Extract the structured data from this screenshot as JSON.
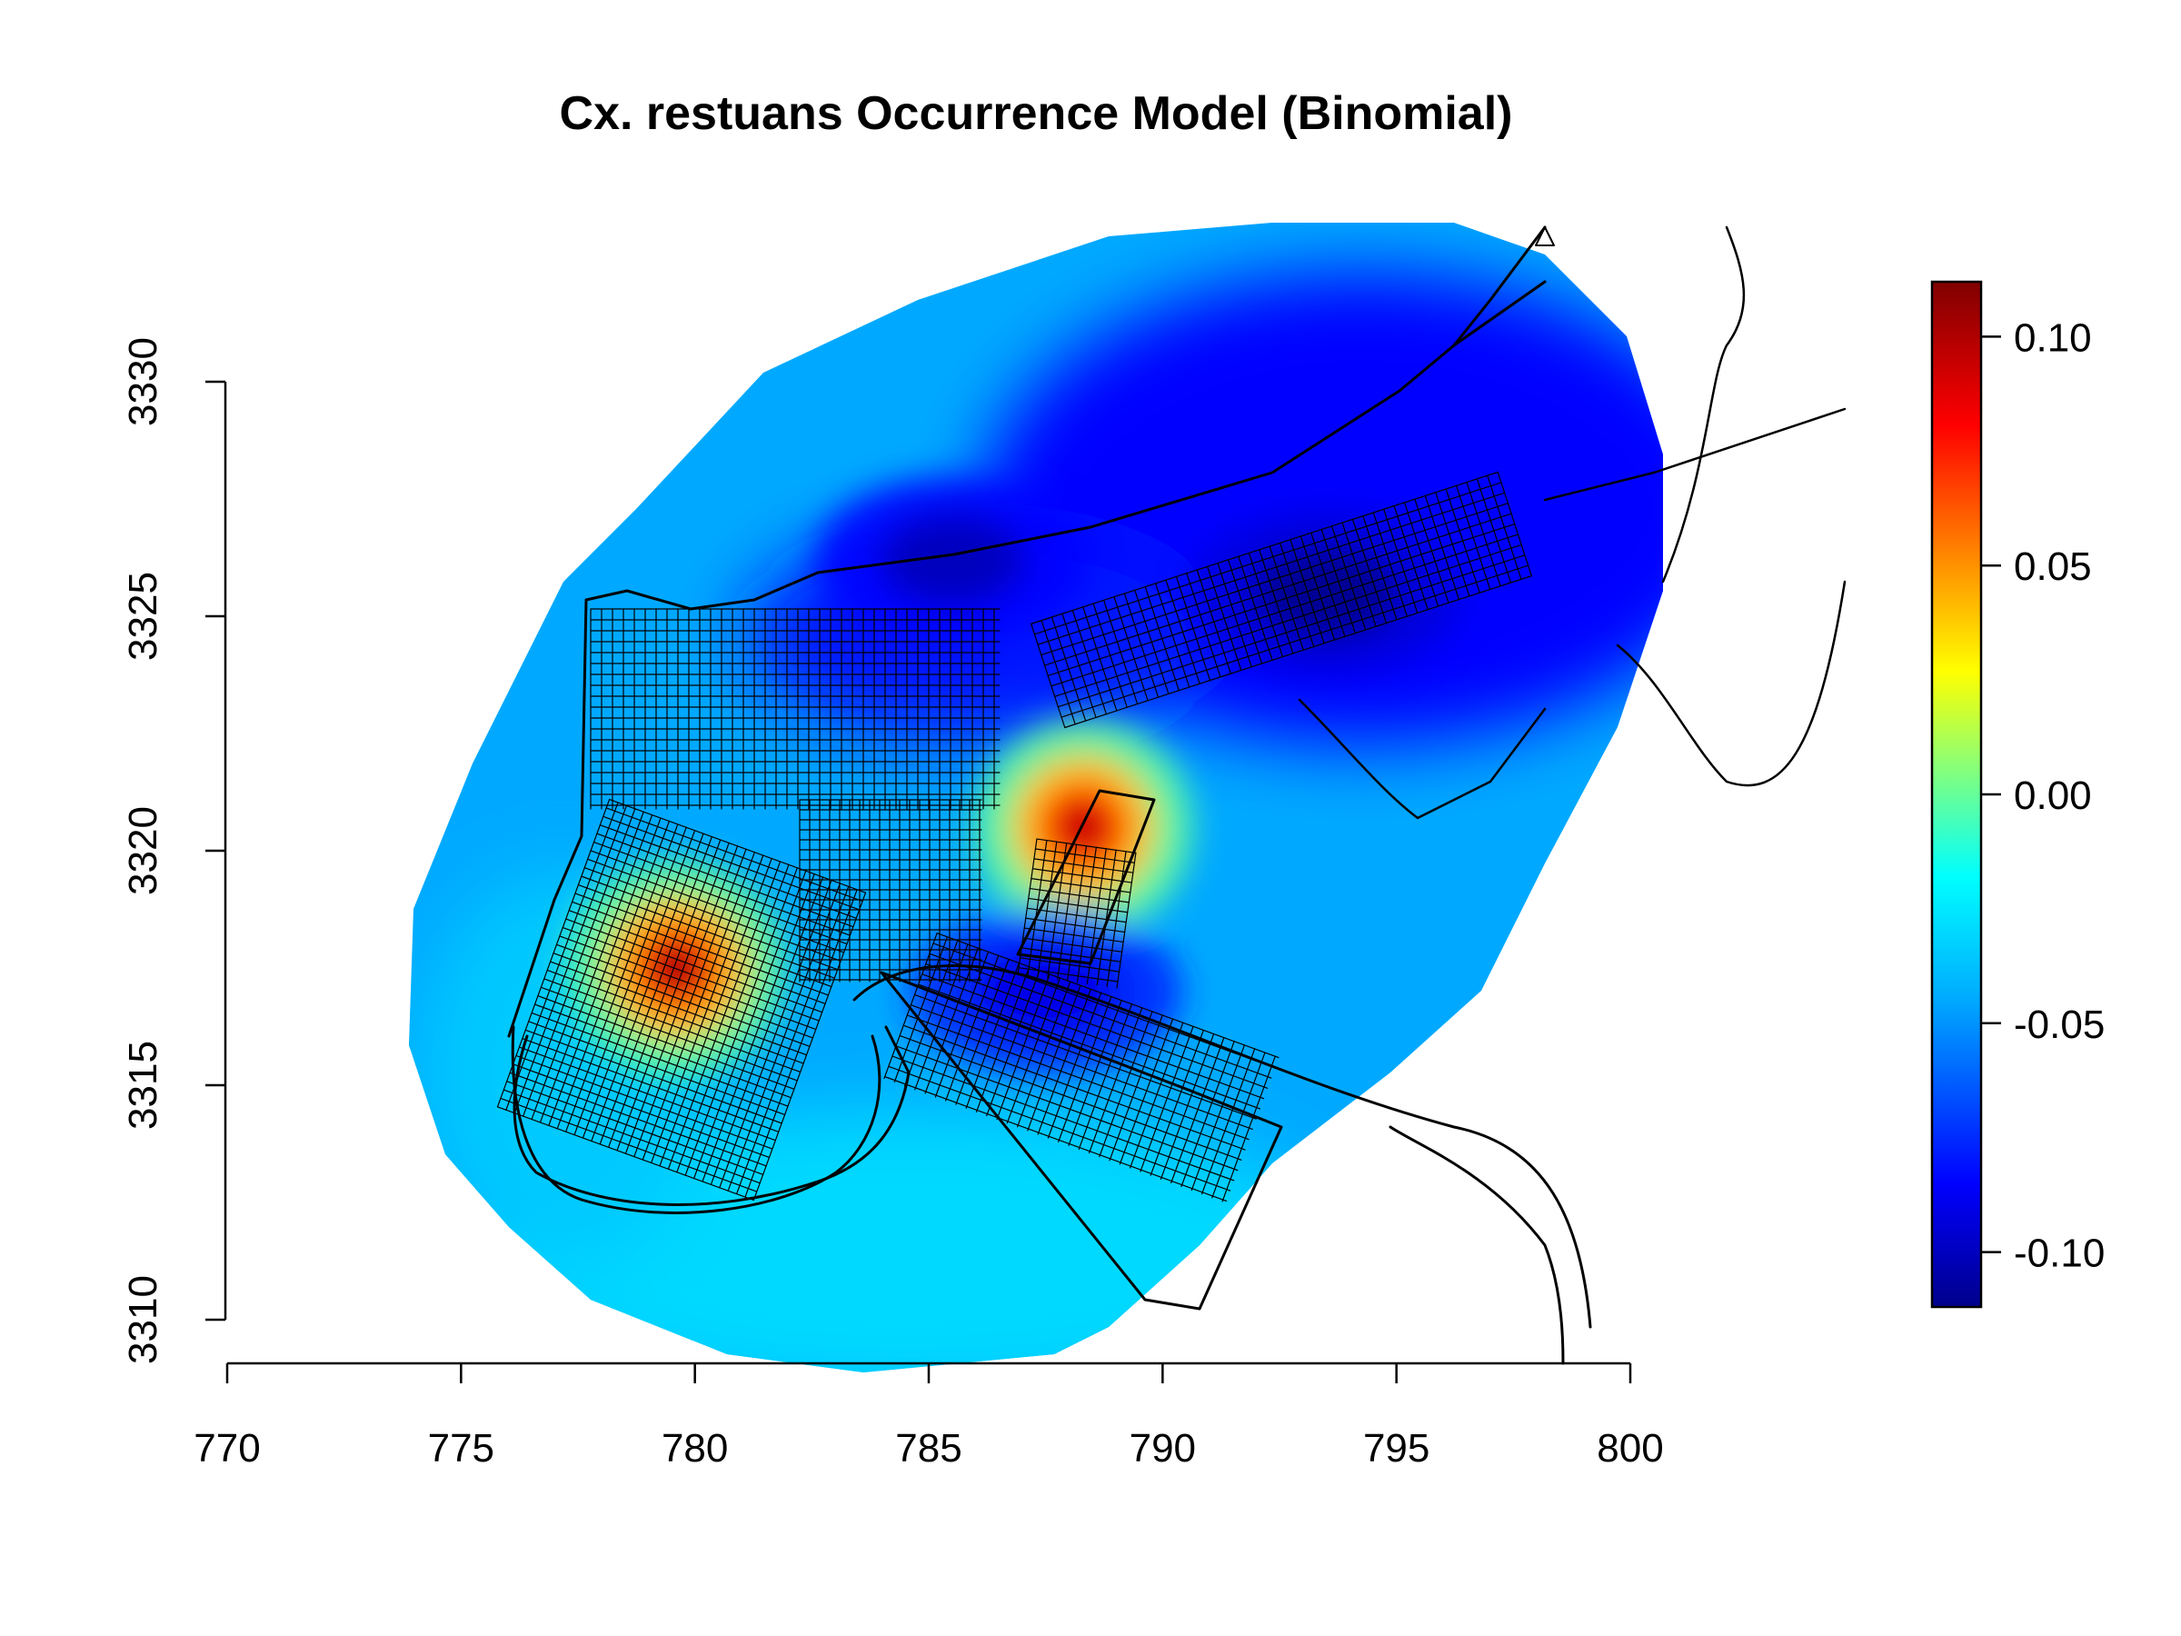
{
  "chart_data": {
    "type": "heatmap",
    "title": "Cx. restuans Occurrence Model (Binomial)",
    "xlabel": "",
    "ylabel": "",
    "xlim": [
      770,
      800
    ],
    "ylim": [
      3310,
      3330
    ],
    "x_ticks": [
      "770",
      "775",
      "780",
      "785",
      "790",
      "795",
      "800"
    ],
    "y_ticks": [
      "3310",
      "3315",
      "3320",
      "3325",
      "3330"
    ],
    "colorbar": {
      "range": [
        -0.112,
        0.112
      ],
      "ticks": [
        "0.10",
        "0.05",
        "0.00",
        "-0.05",
        "-0.10"
      ],
      "palette": [
        "#00008b",
        "#0000ff",
        "#00aaff",
        "#00ffff",
        "#80ff80",
        "#ffff00",
        "#ff8000",
        "#ff0000",
        "#800000"
      ]
    },
    "hotspots": [
      {
        "x": 779.6,
        "y": 3317.5,
        "value": 0.11
      },
      {
        "x": 788.3,
        "y": 3320.5,
        "value": 0.1
      },
      {
        "x": 793.5,
        "y": 3325.5,
        "value": -0.11
      },
      {
        "x": 785.5,
        "y": 3326.2,
        "value": -0.1
      },
      {
        "x": 787.5,
        "y": 3317.0,
        "value": -0.09
      }
    ],
    "grid": false,
    "legend": "right colorbar",
    "overlay": "street map lines"
  },
  "colors": {
    "background": "#ffffff",
    "ink": "#000000"
  }
}
